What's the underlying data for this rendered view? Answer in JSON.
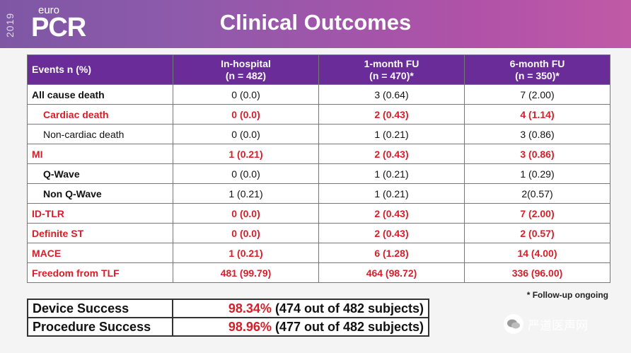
{
  "header": {
    "year": "2019",
    "logo_small": "euro",
    "logo_big": "PCR",
    "title": "Clinical Outcomes"
  },
  "table": {
    "columns": [
      {
        "line1": "Events n (%)",
        "line2": ""
      },
      {
        "line1": "In-hospital",
        "line2": "(n = 482)"
      },
      {
        "line1": "1-month FU",
        "line2": "(n = 470)*"
      },
      {
        "line1": "6-month FU",
        "line2": "(n = 350)*"
      }
    ],
    "rows": [
      {
        "label": "All cause death",
        "cells": [
          "0 (0.0)",
          "3 (0.64)",
          "7 (2.00)"
        ]
      },
      {
        "label": "Cardiac death",
        "cells": [
          "0 (0.0)",
          "2 (0.43)",
          "4 (1.14)"
        ]
      },
      {
        "label": "Non-cardiac death",
        "cells": [
          "0 (0.0)",
          "1 (0.21)",
          "3 (0.86)"
        ]
      },
      {
        "label": "MI",
        "cells": [
          "1 (0.21)",
          "2 (0.43)",
          "3 (0.86)"
        ]
      },
      {
        "label": "Q-Wave",
        "cells": [
          "0 (0.0)",
          "1 (0.21)",
          "1 (0.29)"
        ]
      },
      {
        "label": "Non Q-Wave",
        "cells": [
          "1 (0.21)",
          "1 (0.21)",
          "2(0.57)"
        ]
      },
      {
        "label": "ID-TLR",
        "cells": [
          "0 (0.0)",
          "2 (0.43)",
          "7 (2.00)"
        ]
      },
      {
        "label": "Definite ST",
        "cells": [
          "0 (0.0)",
          "2 (0.43)",
          "2 (0.57)"
        ]
      },
      {
        "label": "MACE",
        "cells": [
          "1 (0.21)",
          "6 (1.28)",
          "14 (4.00)"
        ]
      },
      {
        "label": "Freedom from TLF",
        "cells": [
          "481 (99.79)",
          "464 (98.72)",
          "336 (96.00)"
        ]
      }
    ]
  },
  "footnote": "* Follow-up ongoing",
  "success": [
    {
      "label": "Device Success",
      "percent": "98.34%",
      "detail": " (474 out of 482 subjects)"
    },
    {
      "label": "Procedure Success",
      "percent": "98.96%",
      "detail": " (477 out of 482 subjects)"
    }
  ],
  "watermark": "严道医声网",
  "colors": {
    "header_purple": "#6a2c98",
    "highlight_red": "#d51f28",
    "banner_start": "#7e57a4",
    "banner_end": "#c05aa6"
  }
}
